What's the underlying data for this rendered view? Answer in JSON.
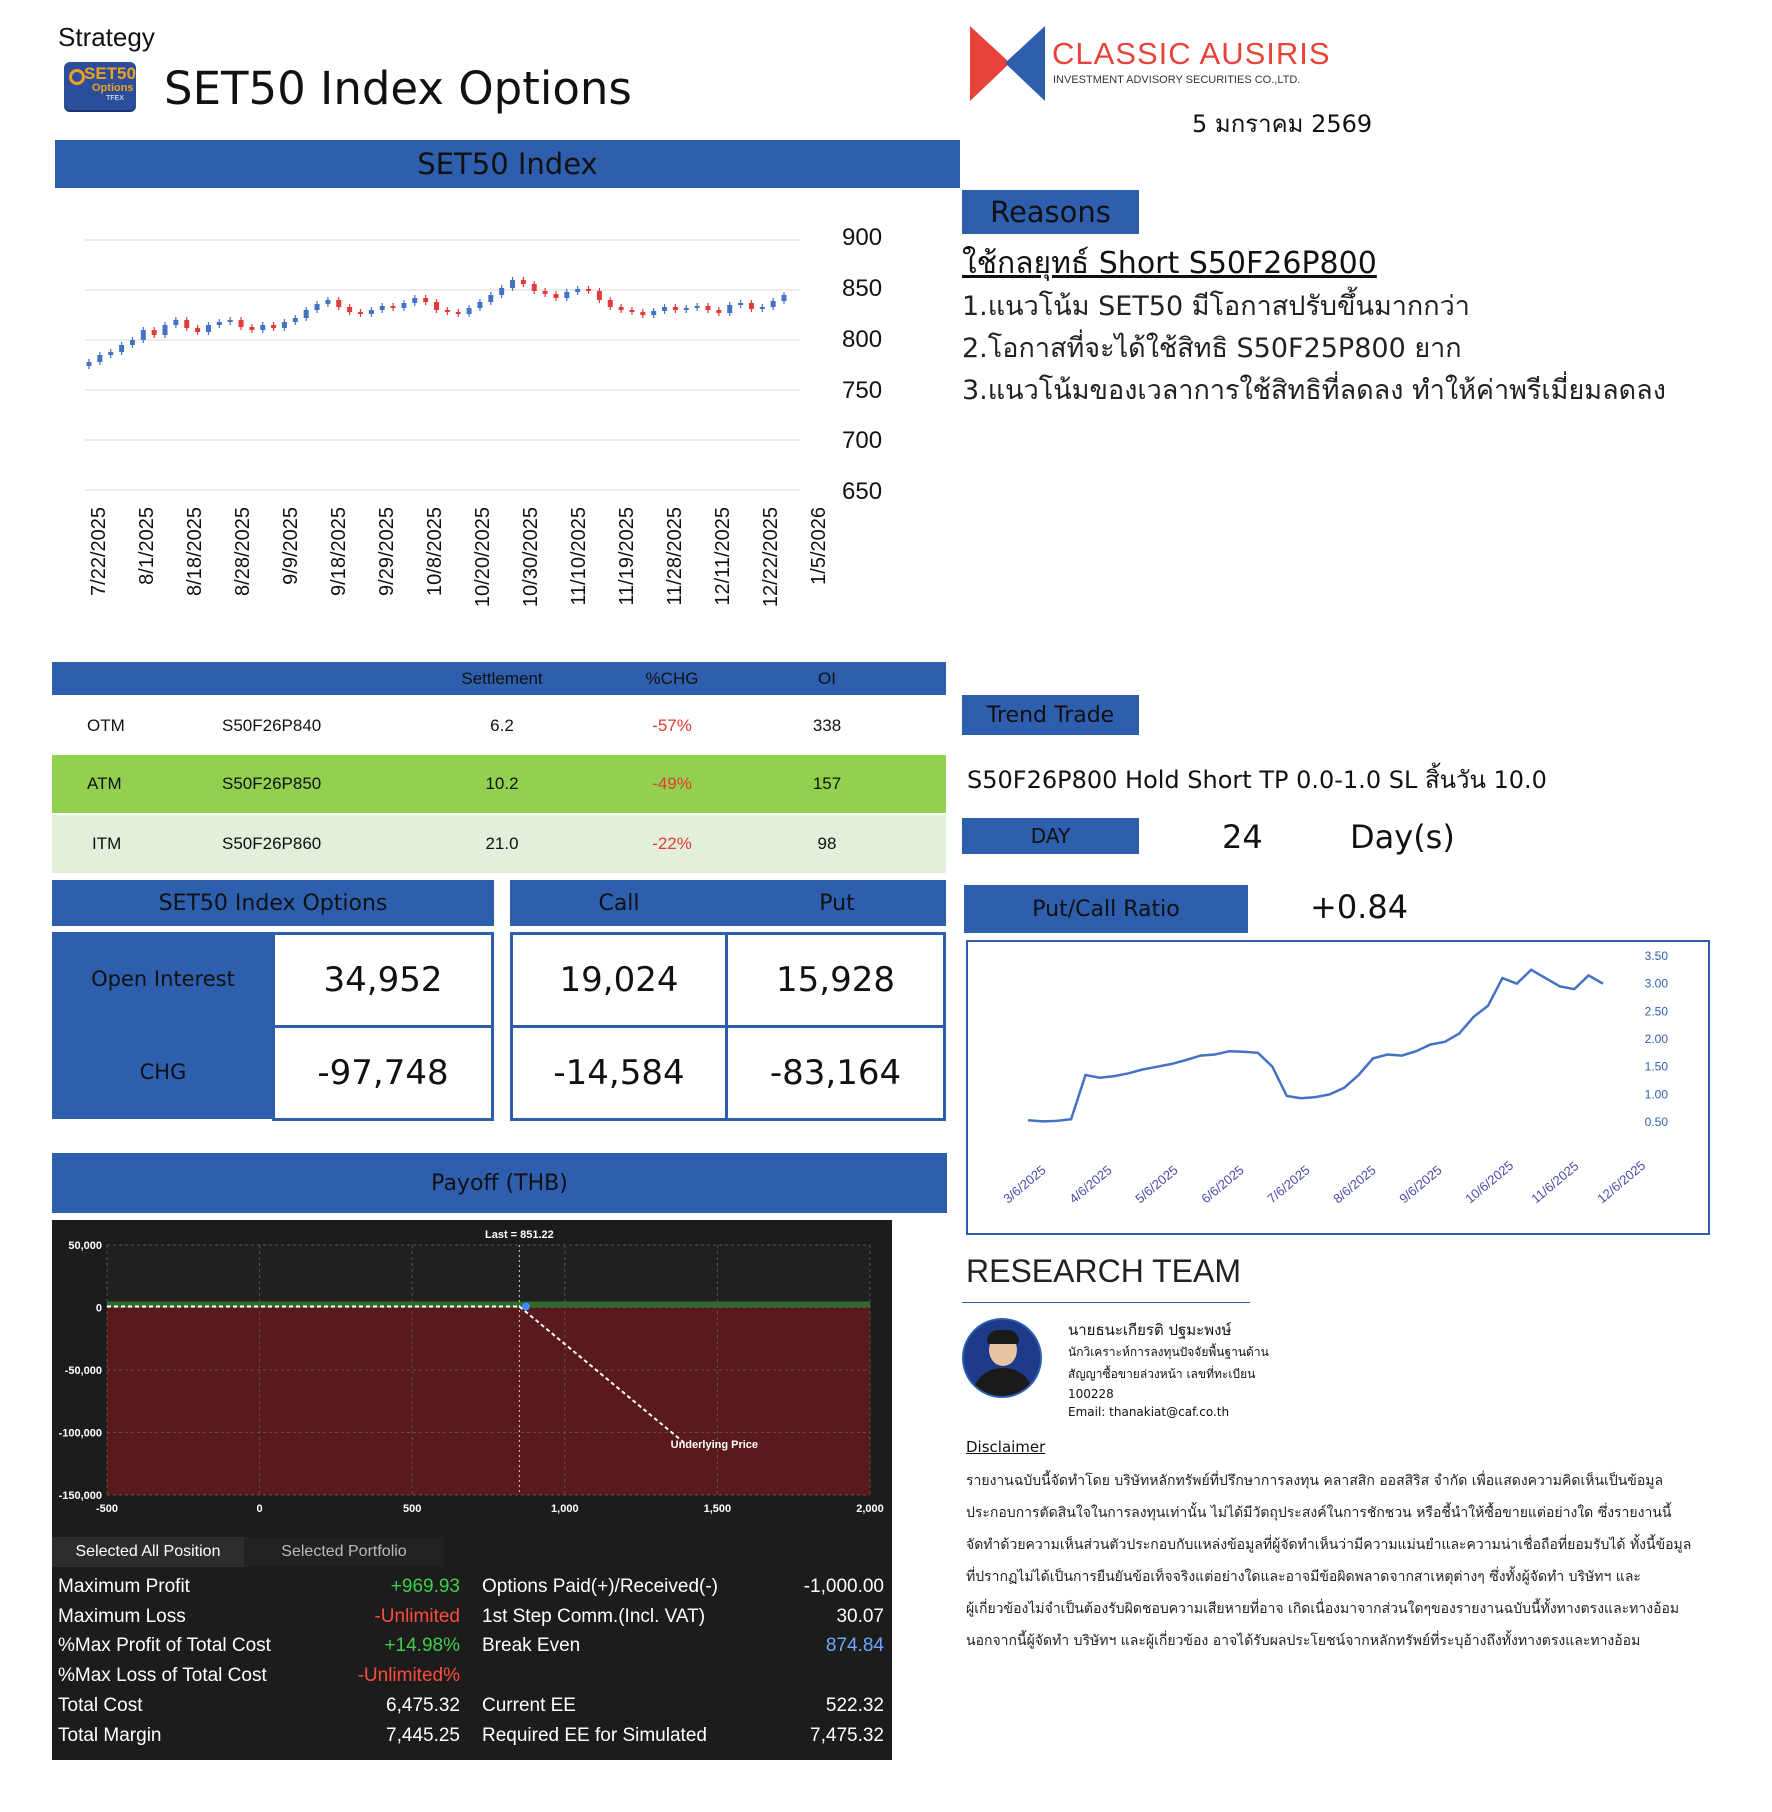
{
  "header": {
    "strategy_label": "Strategy",
    "logo_text": "SET50",
    "logo_sub": "Options",
    "logo_tfex": "TFEX",
    "title": "SET50 Index Options",
    "company_name": "CLASSIC AUSIRIS",
    "company_sub": "INVESTMENT ADVISORY SECURITIES CO.,LTD.",
    "date": "5 มกราคม 2569",
    "brand_red": "#e8433a",
    "brand_blue": "#2e5fae"
  },
  "index_chart": {
    "header": "SET50 Index",
    "y_ticks": [
      "900",
      "850",
      "800",
      "750",
      "700",
      "650"
    ],
    "x_ticks": [
      "7/22/2025",
      "8/1/2025",
      "8/18/2025",
      "8/28/2025",
      "9/9/2025",
      "9/18/2025",
      "9/29/2025",
      "10/8/2025",
      "10/20/2025",
      "10/30/2025",
      "11/10/2025",
      "11/19/2025",
      "11/28/2025",
      "12/11/2025",
      "12/22/2025",
      "1/5/2026"
    ]
  },
  "reasons": {
    "header": "Reasons",
    "strategy": "ใช้กลยุทธ์ Short S50F26P800",
    "items": [
      "1.แนวโน้ม SET50 มีโอกาสปรับขึ้นมากกว่า",
      "2.โอกาสที่จะได้ใช้สิทธิ S50F25P800  ยาก",
      "3.แนวโน้มของเวลาการใช้สิทธิที่ลดลง  ทำให้ค่าพรีเมี่ยมลดลง"
    ]
  },
  "options_table": {
    "headers": [
      "",
      "",
      "Settlement",
      "%CHG",
      "OI"
    ],
    "rows": [
      {
        "type": "OTM",
        "series": "S50F26P840",
        "settlement": "6.2",
        "chg": "-57%",
        "oi": "338",
        "bg": "#ffffff"
      },
      {
        "type": "ATM",
        "series": "S50F26P850",
        "settlement": "10.2",
        "chg": "-49%",
        "oi": "157",
        "bg": "#92d050"
      },
      {
        "type": "ITM",
        "series": "S50F26P860",
        "settlement": "21.0",
        "chg": "-22%",
        "oi": "98",
        "bg": "#e2efda"
      }
    ]
  },
  "summary": {
    "left_header": "SET50 Index Options",
    "call_header": "Call",
    "put_header": "Put",
    "oi_label": "Open Interest",
    "chg_label": "CHG",
    "oi_total": "34,952",
    "chg_total": "-97,748",
    "oi_call": "19,024",
    "oi_put": "15,928",
    "chg_call": "-14,584",
    "chg_put": "-83,164"
  },
  "trend": {
    "header": "Trend Trade",
    "text": "S50F26P800 Hold Short TP 0.0-1.0 SL สิ้นวัน 10.0",
    "day_label": "DAY",
    "day_value": "24",
    "day_unit": "Day(s)",
    "pcr_label": "Put/Call Ratio",
    "pcr_value": "+0.84"
  },
  "chart_data": [
    {
      "type": "line",
      "title": "",
      "y_ticks": [
        "3.50",
        "3.00",
        "2.50",
        "2.00",
        "1.50",
        "1.00",
        "0.50"
      ],
      "x_ticks": [
        "3/6/2025",
        "4/6/2025",
        "5/6/2025",
        "6/6/2025",
        "7/6/2025",
        "8/6/2025",
        "9/6/2025",
        "10/6/2025",
        "11/6/2025",
        "12/6/2025"
      ],
      "ylim": [
        0.5,
        3.5
      ],
      "series": [
        {
          "values": [
            0.53,
            0.51,
            0.52,
            0.55,
            1.35,
            1.3,
            1.33,
            1.38,
            1.45,
            1.5,
            1.55,
            1.62,
            1.7,
            1.72,
            1.78,
            1.77,
            1.75,
            1.5,
            0.97,
            0.93,
            0.95,
            1.0,
            1.12,
            1.35,
            1.65,
            1.72,
            1.7,
            1.78,
            1.9,
            1.95,
            2.1,
            2.4,
            2.6,
            3.1,
            3.0,
            3.25,
            3.1,
            2.95,
            2.9,
            3.15,
            3.0
          ]
        }
      ]
    },
    {
      "type": "candlestick",
      "title": "SET50 Index",
      "ylim": [
        650,
        900
      ],
      "series": [
        {
          "values": [
            778,
            785,
            788,
            795,
            800,
            810,
            805,
            815,
            820,
            812,
            808,
            815,
            818,
            820,
            813,
            810,
            815,
            812,
            818,
            822,
            830,
            836,
            840,
            833,
            828,
            826,
            830,
            834,
            832,
            837,
            842,
            838,
            830,
            828,
            826,
            832,
            838,
            845,
            852,
            860,
            856,
            849,
            846,
            842,
            848,
            851,
            849,
            840,
            833,
            830,
            828,
            825,
            829,
            833,
            830,
            832,
            834,
            830,
            827,
            835,
            837,
            831,
            833,
            839,
            845
          ]
        }
      ]
    }
  ],
  "payoff": {
    "header": "Payoff (THB)",
    "last_label": "Last = 851.22",
    "underlying_label": "Underlying Price",
    "y_ticks": [
      "50,000",
      "0",
      "-50,000",
      "-100,000",
      "-150,000"
    ],
    "x_ticks": [
      "-500",
      "0",
      "500",
      "1,000",
      "1,500",
      "2,000"
    ],
    "tab_all": "Selected All Position",
    "tab_portfolio": "Selected Portfolio",
    "left_rows": [
      {
        "label": "Maximum Profit",
        "value": "+969.93",
        "tone": "green"
      },
      {
        "label": "Maximum Loss",
        "value": "-Unlimited",
        "tone": "red"
      },
      {
        "label": "%Max Profit of Total Cost",
        "value": "+14.98%",
        "tone": "green"
      },
      {
        "label": "%Max Loss of Total Cost",
        "value": "-Unlimited%",
        "tone": "red"
      },
      {
        "label": "Total Cost",
        "value": "6,475.32",
        "tone": "white"
      },
      {
        "label": "Total Margin",
        "value": "7,445.25",
        "tone": "white"
      }
    ],
    "right_rows": [
      {
        "label": "Options Paid(+)/Received(-)",
        "value": "-1,000.00",
        "tone": "white"
      },
      {
        "label": "1st Step Comm.(Incl. VAT)",
        "value": "30.07",
        "tone": "white"
      },
      {
        "label": "Break Even",
        "value": "874.84",
        "tone": "blue"
      },
      {
        "label": "",
        "value": "",
        "tone": "white"
      },
      {
        "label": "Current EE",
        "value": "522.32",
        "tone": "white"
      },
      {
        "label": "Required EE for Simulated",
        "value": "7,475.32",
        "tone": "white"
      }
    ]
  },
  "research": {
    "title": "RESEARCH TEAM",
    "name": "นายธนะเกียรติ ปฐมะพงษ์",
    "role1": "นักวิเคราะห์การลงทุนปัจจัยพื้นฐานด้าน",
    "role2": "สัญญาซื้อขายล่วงหน้า เลขที่ทะเบียน",
    "reg_no": "100228",
    "email": "Email: thanakiat@caf.co.th"
  },
  "disclaimer": {
    "title": "Disclaimer",
    "lines": [
      "รายงานฉบับนี้จัดทำโดย บริษัทหลักทรัพย์ที่ปรึกษาการลงทุน คลาสสิก ออสสิริส จำกัด เพื่อแสดงความคิดเห็นเป็นข้อมูล",
      "ประกอบการตัดสินใจในการลงทุนเท่านั้น ไม่ได้มีวัตถุประสงค์ในการชักชวน หรือชี้นำให้ซื้อขายแต่อย่างใด ซึ่งรายงานนี้",
      "จัดทำด้วยความเห็นส่วนตัวประกอบกับแหล่งข้อมูลที่ผู้จัดทำเห็นว่ามีความแม่นยำและความน่าเชื่อถือที่ยอมรับได้  ทั้งนี้ข้อมูล",
      "ที่ปรากฏไม่ได้เป็นการยืนยันข้อเท็จจริงแต่อย่างใดและอาจมีข้อผิดพลาดจากสาเหตุต่างๆ ซึ่งทั้งผู้จัดทำ  บริษัทฯ และ",
      "ผู้เกี่ยวข้องไม่จำเป็นต้องรับผิดชอบความเสียหายที่อาจ เกิดเนื่องมาจากส่วนใดๆของรายงานฉบับนี้ทั้งทางตรงและทางอ้อม",
      "นอกจากนี้ผู้จัดทำ  บริษัทฯ และผู้เกี่ยวข้อง อาจได้รับผลประโยชน์จากหลักทรัพย์ที่ระบุอ้างถึงทั้งทางตรงและทางอ้อม"
    ]
  }
}
